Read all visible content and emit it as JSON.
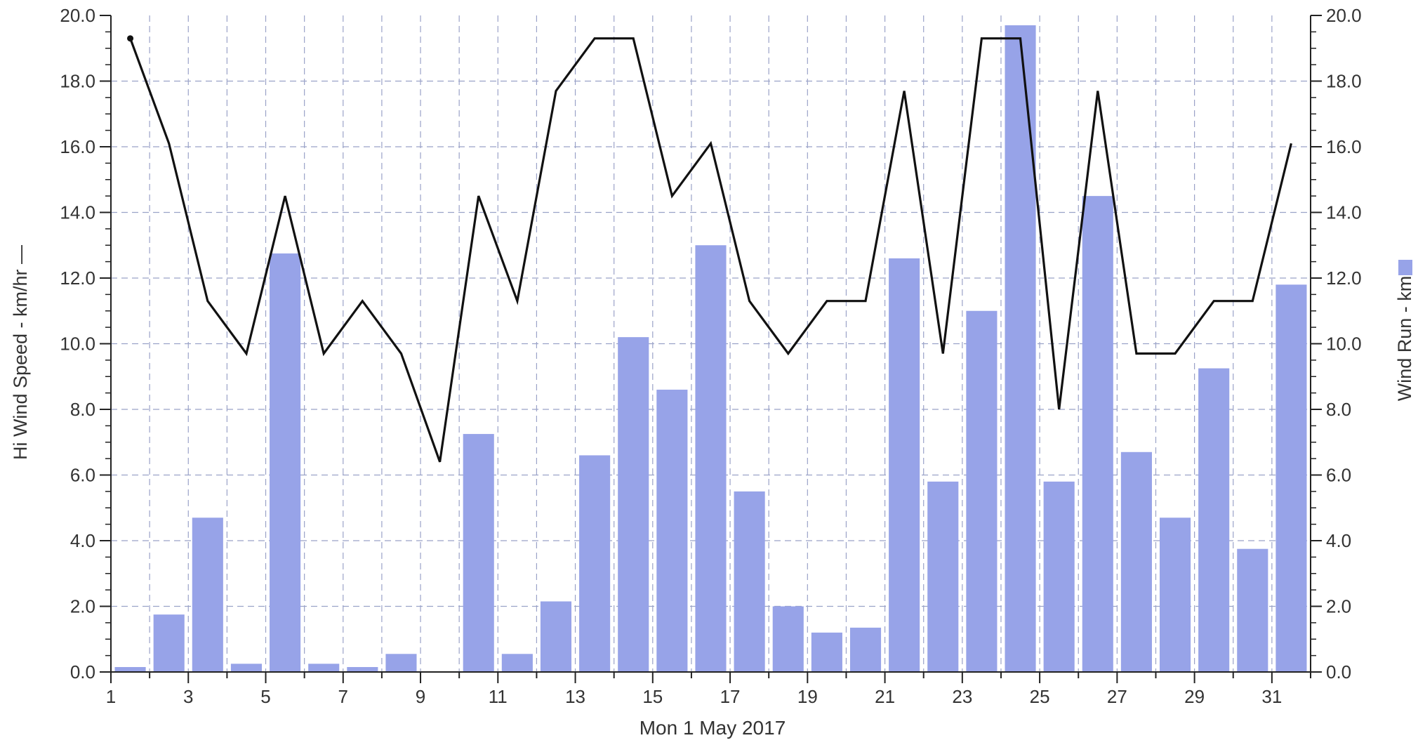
{
  "chart_data": {
    "type": "bar+line",
    "title": "",
    "xlabel": "Mon 1 May 2017",
    "ylabel_left": "Hi Wind Speed - km/hr —",
    "ylabel_right": "Wind Run - km",
    "ylim": [
      0,
      20
    ],
    "y_ticks": [
      "0.0",
      "2.0",
      "4.0",
      "6.0",
      "8.0",
      "10.0",
      "12.0",
      "14.0",
      "16.0",
      "18.0",
      "20.0"
    ],
    "xlim": [
      1,
      32
    ],
    "x_ticks": [
      "1",
      "3",
      "5",
      "7",
      "9",
      "11",
      "13",
      "15",
      "17",
      "19",
      "21",
      "23",
      "25",
      "27",
      "29",
      "31"
    ],
    "grid": true,
    "legend": "right",
    "days": [
      1,
      2,
      3,
      4,
      5,
      6,
      7,
      8,
      9,
      10,
      11,
      12,
      13,
      14,
      15,
      16,
      17,
      18,
      19,
      20,
      21,
      22,
      23,
      24,
      25,
      26,
      27,
      28,
      29,
      30,
      31
    ],
    "series": [
      {
        "name": "Wind Run - km",
        "type": "bar",
        "axis": "right",
        "color": "#97a3e8",
        "values": [
          0.15,
          1.75,
          4.7,
          0.25,
          12.75,
          0.25,
          0.15,
          0.55,
          0.0,
          7.25,
          0.55,
          2.15,
          6.6,
          10.2,
          8.6,
          13.0,
          5.5,
          2.0,
          1.2,
          1.35,
          12.6,
          5.8,
          11.0,
          19.7,
          5.8,
          14.5,
          6.7,
          4.7,
          9.25,
          3.75,
          11.8
        ]
      },
      {
        "name": "Hi Wind Speed - km/hr",
        "type": "line",
        "axis": "left",
        "color": "#111111",
        "values": [
          19.3,
          16.1,
          11.3,
          9.7,
          14.5,
          9.7,
          11.3,
          9.7,
          6.4,
          14.5,
          11.3,
          17.7,
          19.3,
          19.3,
          14.5,
          16.1,
          11.3,
          9.7,
          11.3,
          11.3,
          17.7,
          9.7,
          19.3,
          19.3,
          8.0,
          17.7,
          9.7,
          9.7,
          11.3,
          11.3,
          16.1
        ]
      }
    ]
  }
}
